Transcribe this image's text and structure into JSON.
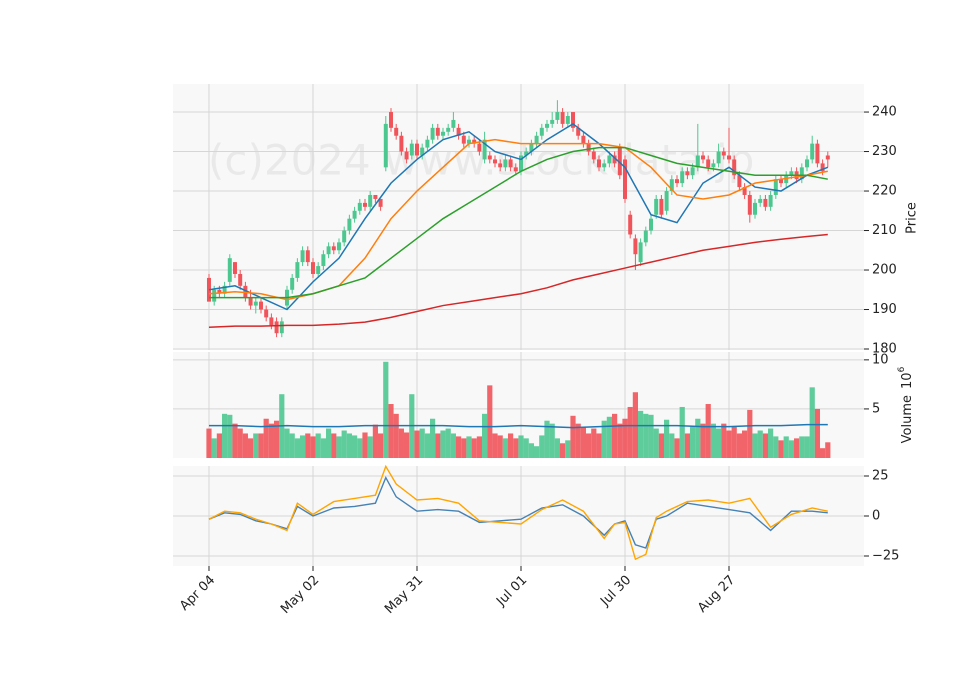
{
  "chart_data": [
    {
      "type": "candlestick",
      "watermark": "(c)2024 www.stockdata.jp",
      "ylabel": "Price",
      "up_color": "#4dc790",
      "down_color": "#f0545a",
      "grid": true,
      "xlim": [
        -6.92,
        125.96
      ],
      "ylim": [
        179.75,
        247.1
      ],
      "yticks": [
        180,
        190,
        200,
        210,
        220,
        230,
        240
      ],
      "ohlc": [
        [
          198,
          199,
          192,
          192
        ],
        [
          192,
          196,
          191,
          195
        ],
        [
          195,
          196,
          193,
          194
        ],
        [
          194,
          197,
          193,
          196
        ],
        [
          197,
          204,
          196,
          203
        ],
        [
          202,
          202,
          198,
          199
        ],
        [
          199,
          200,
          195,
          196
        ],
        [
          196,
          197,
          192,
          193
        ],
        [
          193,
          195,
          190,
          191
        ],
        [
          191,
          193,
          189,
          192
        ],
        [
          192,
          193,
          189,
          190
        ],
        [
          190,
          191,
          187,
          188
        ],
        [
          188,
          189,
          185,
          186
        ],
        [
          187,
          188,
          183,
          184
        ],
        [
          184,
          188,
          183,
          187
        ],
        [
          191,
          196,
          190,
          195
        ],
        [
          195,
          199,
          194,
          198
        ],
        [
          198,
          203,
          197,
          202
        ],
        [
          202,
          206,
          201,
          205
        ],
        [
          205,
          206,
          201,
          202
        ],
        [
          202,
          203,
          198,
          199
        ],
        [
          199,
          202,
          198,
          201
        ],
        [
          201,
          205,
          200,
          204
        ],
        [
          204,
          207,
          203,
          206
        ],
        [
          206,
          207,
          204,
          205
        ],
        [
          205,
          208,
          204,
          207
        ],
        [
          207,
          211,
          206,
          210
        ],
        [
          210,
          214,
          209,
          213
        ],
        [
          213,
          216,
          212,
          215
        ],
        [
          215,
          218,
          214,
          217
        ],
        [
          217,
          218,
          215,
          216
        ],
        [
          216,
          220,
          215,
          219
        ],
        [
          219,
          219,
          217,
          218
        ],
        [
          218,
          218,
          215,
          216
        ],
        [
          226,
          239,
          225,
          237
        ],
        [
          240,
          241,
          235,
          236
        ],
        [
          236,
          237,
          233,
          234
        ],
        [
          234,
          235,
          229,
          230
        ],
        [
          230,
          231,
          227,
          228
        ],
        [
          229,
          233,
          228,
          232
        ],
        [
          232,
          233,
          228,
          229
        ],
        [
          229,
          232,
          228,
          231
        ],
        [
          231,
          234,
          230,
          233
        ],
        [
          233,
          237,
          232,
          236
        ],
        [
          236,
          237,
          233,
          234
        ],
        [
          234,
          236,
          233,
          235
        ],
        [
          235,
          237,
          234,
          236
        ],
        [
          236,
          240,
          235,
          238
        ],
        [
          236,
          237,
          233,
          234
        ],
        [
          234,
          235,
          231,
          232
        ],
        [
          232,
          234,
          231,
          233
        ],
        [
          233,
          234,
          231,
          232
        ],
        [
          232,
          233,
          229,
          230
        ],
        [
          228,
          235,
          227,
          233
        ],
        [
          229,
          230,
          227,
          228
        ],
        [
          228,
          229,
          226,
          227
        ],
        [
          227,
          228,
          225,
          226
        ],
        [
          226,
          229,
          225,
          228
        ],
        [
          228,
          229,
          225,
          226
        ],
        [
          226,
          227,
          224,
          225
        ],
        [
          225,
          230,
          224,
          229
        ],
        [
          229,
          231,
          228,
          230
        ],
        [
          230,
          233,
          229,
          232
        ],
        [
          232,
          235,
          231,
          234
        ],
        [
          234,
          237,
          233,
          236
        ],
        [
          236,
          238,
          235,
          237
        ],
        [
          237,
          240,
          236,
          238
        ],
        [
          238,
          243,
          237,
          240
        ],
        [
          240,
          241,
          236,
          237
        ],
        [
          237,
          240,
          236,
          239
        ],
        [
          240,
          240,
          235,
          236
        ],
        [
          236,
          237,
          233,
          234
        ],
        [
          234,
          235,
          231,
          232
        ],
        [
          232,
          233,
          229,
          230
        ],
        [
          230,
          231,
          227,
          228
        ],
        [
          228,
          229,
          225,
          226
        ],
        [
          226,
          228,
          225,
          227
        ],
        [
          227,
          230,
          226,
          229
        ],
        [
          229,
          230,
          226,
          227
        ],
        [
          231,
          232,
          223,
          224
        ],
        [
          228,
          229,
          217,
          218
        ],
        [
          214,
          215,
          208,
          209
        ],
        [
          208,
          209,
          200,
          204
        ],
        [
          202,
          208,
          201,
          207
        ],
        [
          207,
          211,
          206,
          210
        ],
        [
          210,
          214,
          209,
          213
        ],
        [
          214,
          219,
          213,
          218
        ],
        [
          218,
          219,
          213,
          214
        ],
        [
          215,
          221,
          214,
          220
        ],
        [
          220,
          224,
          219,
          223
        ],
        [
          223,
          224,
          221,
          222
        ],
        [
          222,
          226,
          221,
          225
        ],
        [
          225,
          226,
          223,
          224
        ],
        [
          224,
          227,
          223,
          226
        ],
        [
          226,
          237,
          225,
          229
        ],
        [
          229,
          230,
          227,
          228
        ],
        [
          228,
          229,
          225,
          226
        ],
        [
          226,
          228,
          225,
          227
        ],
        [
          227,
          232,
          226,
          230
        ],
        [
          230,
          231,
          228,
          229
        ],
        [
          229,
          236,
          227,
          228
        ],
        [
          228,
          229,
          223,
          224
        ],
        [
          224,
          225,
          220,
          221
        ],
        [
          221,
          222,
          218,
          219
        ],
        [
          219,
          220,
          212,
          214
        ],
        [
          214,
          218,
          213,
          217
        ],
        [
          217,
          219,
          216,
          218
        ],
        [
          218,
          219,
          215,
          216
        ],
        [
          216,
          220,
          215,
          219
        ],
        [
          219,
          224,
          218,
          223
        ],
        [
          223,
          224,
          221,
          222
        ],
        [
          222,
          225,
          221,
          224
        ],
        [
          224,
          226,
          223,
          225
        ],
        [
          225,
          226,
          222,
          223
        ],
        [
          223,
          227,
          222,
          226
        ],
        [
          226,
          229,
          225,
          228
        ],
        [
          228,
          234,
          227,
          232
        ],
        [
          232,
          233,
          226,
          227
        ],
        [
          227,
          228,
          224,
          225
        ],
        [
          229,
          230,
          226,
          228
        ]
      ],
      "ma_x": [
        0,
        5,
        10,
        15,
        20,
        25,
        30,
        35,
        40,
        45,
        50,
        55,
        60,
        65,
        70,
        75,
        80,
        85,
        90,
        95,
        100,
        105,
        110,
        115,
        119
      ],
      "series": [
        {
          "color": "#1f77b4",
          "values": [
            195,
            196,
            193,
            190,
            197,
            203,
            213,
            222,
            228,
            233,
            235,
            230,
            228,
            233,
            237,
            232,
            226,
            214,
            212,
            222,
            226,
            221,
            220,
            224,
            226
          ]
        },
        {
          "color": "#ff7f0e",
          "values": [
            194,
            194.5,
            194,
            192.5,
            194,
            196,
            203,
            213,
            220,
            226,
            232,
            233,
            232,
            232,
            232,
            232,
            231,
            226,
            219,
            218,
            219,
            222,
            223,
            224,
            225
          ]
        },
        {
          "color": "#2ca02c",
          "values": [
            193,
            193,
            193,
            193,
            194,
            196,
            198,
            203,
            208,
            213,
            217,
            221,
            225,
            228,
            230,
            231,
            231,
            229,
            227,
            226,
            225,
            224,
            224,
            224,
            223
          ]
        },
        {
          "color": "#d62728",
          "values": [
            185.5,
            185.8,
            185.8,
            186,
            186,
            186.3,
            186.8,
            188,
            189.5,
            191,
            192,
            193,
            194,
            195.5,
            197.5,
            199,
            200.5,
            202,
            203.5,
            205,
            206,
            207,
            207.8,
            208.5,
            209
          ]
        }
      ]
    },
    {
      "type": "bar",
      "ylabel": "Volume",
      "exponent_base": "10",
      "exponent": 6,
      "grid": true,
      "ylim": [
        0,
        10.8
      ],
      "yticks": [
        5,
        10
      ],
      "values": [
        3.0,
        2.0,
        2.5,
        4.5,
        4.4,
        3.5,
        3.0,
        2.5,
        2.0,
        2.5,
        2.5,
        4.0,
        3.5,
        3.8,
        6.5,
        3.0,
        2.5,
        2.0,
        2.3,
        2.5,
        2.2,
        2.5,
        2.0,
        3.0,
        2.5,
        2.2,
        2.8,
        2.5,
        2.3,
        2.0,
        2.6,
        2.2,
        3.4,
        2.5,
        9.8,
        5.5,
        4.5,
        3.0,
        2.6,
        6.5,
        2.8,
        3.0,
        2.5,
        4.0,
        2.5,
        2.8,
        3.0,
        2.5,
        2.2,
        2.0,
        2.2,
        2.0,
        2.2,
        4.5,
        7.4,
        2.5,
        2.3,
        2.0,
        2.5,
        2.0,
        2.3,
        2.0,
        1.5,
        1.2,
        2.3,
        3.8,
        3.5,
        2.0,
        1.5,
        1.8,
        4.3,
        3.5,
        3.2,
        2.5,
        3.0,
        2.5,
        3.8,
        4.2,
        4.5,
        3.5,
        4.0,
        5.2,
        6.7,
        4.8,
        4.5,
        4.4,
        3.0,
        2.5,
        3.9,
        2.5,
        2.0,
        5.2,
        2.5,
        3.2,
        4.0,
        3.5,
        5.5,
        3.5,
        3.0,
        3.5,
        2.8,
        3.2,
        2.5,
        2.8,
        4.9,
        2.5,
        2.8,
        2.5,
        3.0,
        2.2,
        1.8,
        2.2,
        1.8,
        2.0,
        2.2,
        2.2,
        7.2,
        5.0,
        1.0,
        1.6
      ],
      "series": [
        {
          "color": "#1f77b4",
          "values": [
            3.3,
            3.3,
            3.2,
            3.3,
            3.2,
            3.2,
            3.3,
            3.3,
            3.3,
            3.3,
            3.2,
            3.2,
            3.3,
            3.2,
            3.1,
            3.2,
            3.3,
            3.3,
            3.3,
            3.2,
            3.2,
            3.3,
            3.3,
            3.4,
            3.4
          ]
        }
      ]
    },
    {
      "type": "line",
      "grid": true,
      "ylim": [
        -31.25,
        31.25
      ],
      "yticks": [
        {
          "value": -25,
          "label": "−25"
        },
        0,
        25
      ],
      "xticks": [
        {
          "value": 0,
          "label": "Apr 04"
        },
        {
          "value": 20,
          "label": "May 02"
        },
        {
          "value": 40,
          "label": "May 31"
        },
        {
          "value": 60,
          "label": "Jul 01"
        },
        {
          "value": 80,
          "label": "Jul 30"
        },
        {
          "value": 100,
          "label": "Aug 27"
        }
      ],
      "x": [
        0,
        3,
        6,
        9,
        12,
        15,
        17,
        20,
        24,
        28,
        32,
        34,
        36,
        40,
        44,
        48,
        52,
        56,
        60,
        64,
        68,
        72,
        76,
        78,
        80,
        82,
        84,
        86,
        88,
        92,
        96,
        100,
        104,
        108,
        112,
        116,
        119
      ],
      "series": [
        {
          "color": "#4682b4",
          "values": [
            -2,
            2,
            1,
            -3,
            -5,
            -8,
            6,
            0,
            5,
            6,
            8,
            24,
            12,
            3,
            4,
            3,
            -4,
            -3,
            -2,
            5,
            7,
            0,
            -12,
            -5,
            -3,
            -18,
            -20,
            -2,
            0,
            8,
            6,
            4,
            2,
            -9,
            3,
            3,
            2
          ]
        },
        {
          "color": "#ffa500",
          "values": [
            -2,
            3,
            2,
            -2,
            -5,
            -9,
            8,
            1,
            9,
            11,
            13,
            31,
            20,
            10,
            11,
            8,
            -3,
            -4,
            -5,
            4,
            10,
            3,
            -14,
            -5,
            -4,
            -27,
            -24,
            -1,
            3,
            9,
            10,
            8,
            11,
            -7,
            1,
            5,
            3
          ]
        }
      ]
    }
  ]
}
